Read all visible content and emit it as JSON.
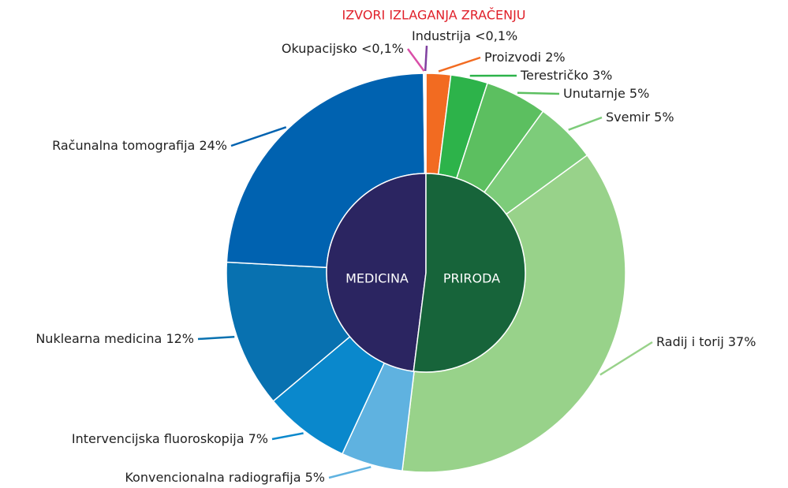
{
  "chart_data": {
    "type": "sunburst",
    "title": "IZVORI IZLAGANJA ZRAČENJU",
    "title_color": "#e0202a",
    "inner": {
      "categories": [
        "MEDICINA",
        "PRIRODA"
      ],
      "values": [
        48,
        52
      ],
      "colors": [
        "#2b2561",
        "#17643a"
      ]
    },
    "outer": {
      "categories": [
        "Proizvodi",
        "Terestričko",
        "Unutarnje",
        "Svemir",
        "Radij i torij",
        "Konvencionalna radiografija",
        "Intervencijska fluoroskopija",
        "Nuklearna medicina",
        "Računalna tomografija",
        "Okupacijsko",
        "Industrija"
      ],
      "values": [
        2,
        3,
        5,
        5,
        37,
        5,
        7,
        12,
        24,
        0.1,
        0.1
      ],
      "value_labels": [
        "2%",
        "3%",
        "5%",
        "5%",
        "37%",
        "5%",
        "7%",
        "12%",
        "24%",
        "<0,1%",
        "<0,1%"
      ],
      "colors": [
        "#f26b21",
        "#2db34a",
        "#5cbf60",
        "#7dcc7a",
        "#98d28a",
        "#5fb2e0",
        "#0a88cc",
        "#0871b0",
        "#0062b0",
        "#d94fa8",
        "#8040a0"
      ]
    }
  }
}
